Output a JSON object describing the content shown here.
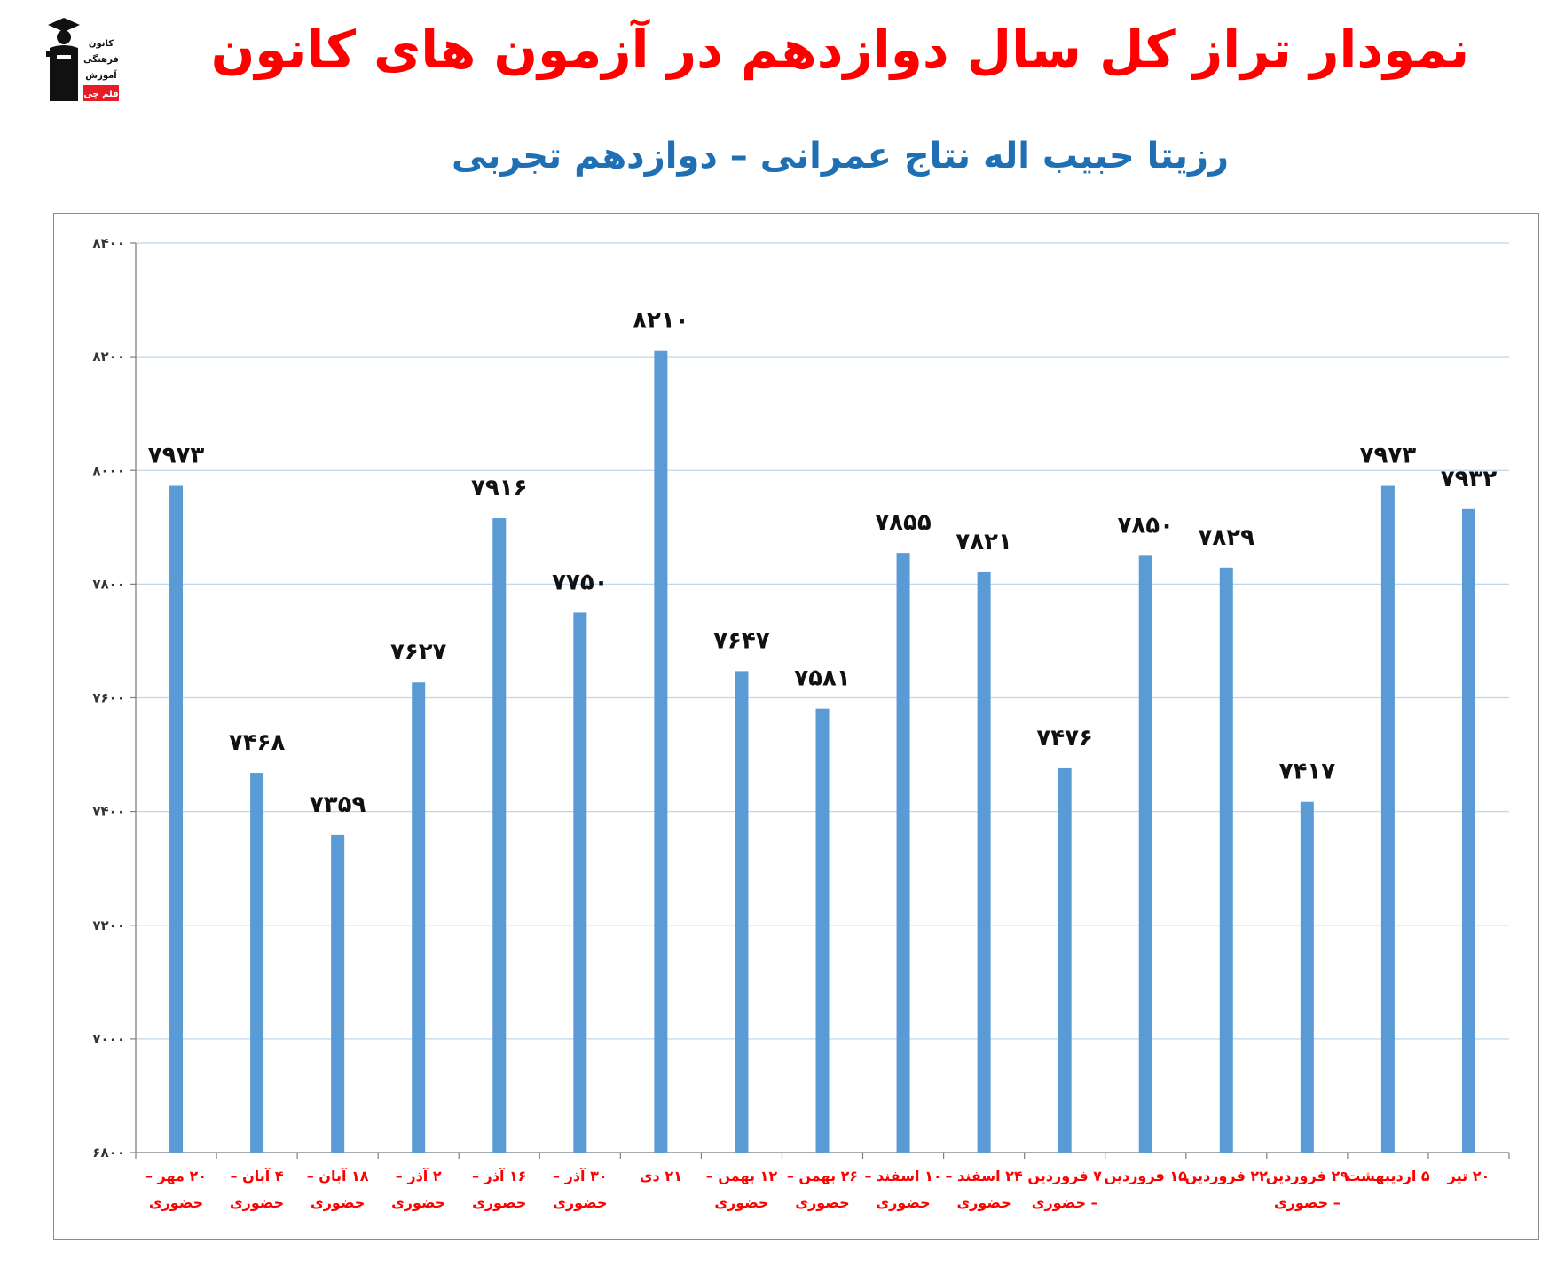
{
  "header": {
    "title": "نمودار تراز کل سال دوازدهم در آزمون های کانون",
    "subtitle": "رزیتا حبیب اله نتاج عمرانی – دوازدهم تجربی"
  },
  "logo": {
    "lines": [
      "کانون",
      "فرهنگی",
      "آموزش",
      "قلم چی"
    ],
    "icon": "graduate-icon"
  },
  "colors": {
    "bar": "#5b9bd5",
    "title": "#ff0000",
    "subtitle": "#1f6fb5",
    "xlabel": "#ff0000",
    "grid": "#bdd7ee"
  },
  "chart_data": {
    "type": "bar",
    "title": "نمودار تراز کل سال دوازدهم در آزمون های کانون",
    "subtitle": "رزیتا حبیب اله نتاج عمرانی – دوازدهم تجربی",
    "categories": [
      [
        "۲۰ مهر –",
        "حضوری"
      ],
      [
        "۴ آبان –",
        "حضوری"
      ],
      [
        "۱۸ آبان –",
        "حضوری"
      ],
      [
        "۲ آذر –",
        "حضوری"
      ],
      [
        "۱۶ آذر –",
        "حضوری"
      ],
      [
        "۳۰ آذر –",
        "حضوری"
      ],
      [
        "۲۱ دی"
      ],
      [
        "۱۲ بهمن –",
        "حضوری"
      ],
      [
        "۲۶ بهمن –",
        "حضوری"
      ],
      [
        "۱۰ اسفند –",
        "حضوری"
      ],
      [
        "۲۴ اسفند –",
        "حضوری"
      ],
      [
        "۷ فروردین",
        "– حضوری"
      ],
      [
        "۱۵ فروردین"
      ],
      [
        "۲۲ فروردین"
      ],
      [
        "۲۹ فروردین",
        "– حضوری"
      ],
      [
        "۵ اردیبهشت"
      ],
      [
        "۲۰ تیر"
      ]
    ],
    "values": [
      7973,
      7468,
      7359,
      7627,
      7916,
      7750,
      8210,
      7647,
      7581,
      7855,
      7821,
      7476,
      7850,
      7829,
      7417,
      7973,
      7932
    ],
    "value_labels": [
      "۷۹۷۳",
      "۷۴۶۸",
      "۷۳۵۹",
      "۷۶۲۷",
      "۷۹۱۶",
      "۷۷۵۰",
      "۸۲۱۰",
      "۷۶۴۷",
      "۷۵۸۱",
      "۷۸۵۵",
      "۷۸۲۱",
      "۷۴۷۶",
      "۷۸۵۰",
      "۷۸۲۹",
      "۷۴۱۷",
      "۷۹۷۳",
      "۷۹۳۲"
    ],
    "ylim": [
      6800,
      8400
    ],
    "yticks": [
      6800,
      7000,
      7200,
      7400,
      7600,
      7800,
      8000,
      8200,
      8400
    ],
    "ytick_labels": [
      "۶۸۰۰",
      "۷۰۰۰",
      "۷۲۰۰",
      "۷۴۰۰",
      "۷۶۰۰",
      "۷۸۰۰",
      "۸۰۰۰",
      "۸۲۰۰",
      "۸۴۰۰"
    ],
    "grid": true,
    "legend": "none",
    "xlabel": "",
    "ylabel": ""
  }
}
